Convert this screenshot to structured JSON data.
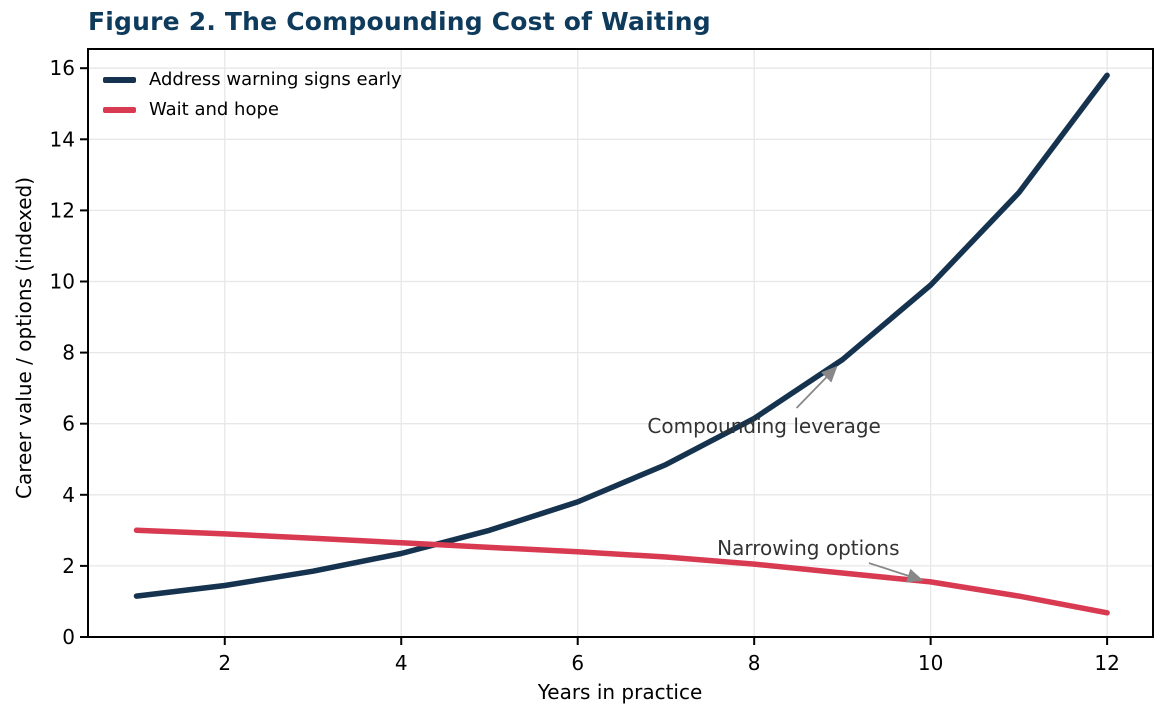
{
  "figure": {
    "title": "Figure 2. The Compounding Cost of Waiting",
    "title_color": "#0e3a5c"
  },
  "chart_data": {
    "type": "line",
    "x": [
      1,
      2,
      3,
      4,
      5,
      6,
      7,
      8,
      9,
      10,
      11,
      12
    ],
    "series": [
      {
        "name": "Address warning signs early",
        "color": "#15334f",
        "values": [
          1.15,
          1.45,
          1.85,
          2.35,
          3.0,
          3.8,
          4.85,
          6.15,
          7.8,
          9.9,
          12.5,
          15.8
        ]
      },
      {
        "name": "Wait and hope",
        "color": "#d83a52",
        "values": [
          3.0,
          2.9,
          2.78,
          2.65,
          2.52,
          2.4,
          2.25,
          2.05,
          1.8,
          1.55,
          1.15,
          0.68
        ]
      }
    ],
    "xlabel": "Years in practice",
    "ylabel": "Career value / options (indexed)",
    "xticks": [
      2,
      4,
      6,
      8,
      10,
      12
    ],
    "yticks": [
      0,
      2,
      4,
      6,
      8,
      10,
      12,
      14,
      16
    ],
    "xlim": [
      0.45,
      12.52
    ],
    "ylim": [
      0,
      16.54
    ],
    "grid": true,
    "legend_position": "upper left",
    "annotations": [
      {
        "text": "Compounding leverage",
        "text_xy": [
          6.79,
          5.74
        ],
        "arrow_from": [
          8.48,
          6.44
        ],
        "arrow_to": [
          8.93,
          7.59
        ]
      },
      {
        "text": "Narrowing options",
        "text_xy": [
          7.58,
          2.31
        ],
        "arrow_from": [
          9.3,
          2.08
        ],
        "arrow_to": [
          9.9,
          1.6
        ]
      }
    ],
    "colors": {
      "grid": "#e7e7e7",
      "spine": "#000000",
      "tick_label": "#000000",
      "annotation_text": "#333333",
      "annotation_arrow": "#888888"
    }
  }
}
